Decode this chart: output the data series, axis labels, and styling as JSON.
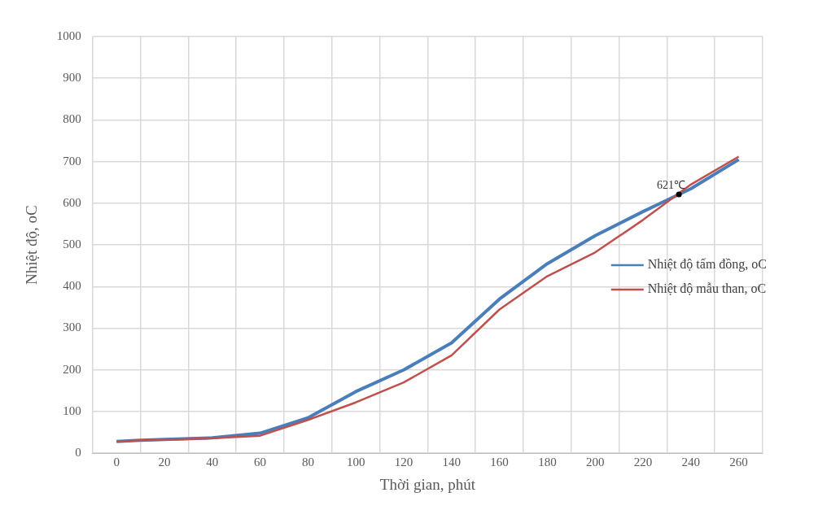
{
  "chart_data": {
    "type": "line",
    "xlabel": "Thời gian, phút",
    "ylabel": "Nhiệt độ, oC",
    "xlim": [
      -10,
      270
    ],
    "xticks": [
      {
        "value": -10,
        "label": null
      },
      0,
      {
        "value": 10,
        "label": null
      },
      20,
      {
        "value": 30,
        "label": null
      },
      40,
      {
        "value": 50,
        "label": null
      },
      60,
      {
        "value": 70,
        "label": null
      },
      80,
      {
        "value": 90,
        "label": null
      },
      100,
      {
        "value": 110,
        "label": null
      },
      120,
      {
        "value": 130,
        "label": null
      },
      140,
      {
        "value": 150,
        "label": null
      },
      160,
      {
        "value": 170,
        "label": null
      },
      180,
      {
        "value": 190,
        "label": null
      },
      200,
      {
        "value": 210,
        "label": null
      },
      220,
      {
        "value": 230,
        "label": null
      },
      240,
      {
        "value": 250,
        "label": null
      },
      260,
      {
        "value": 270,
        "label": null
      }
    ],
    "ylim": [
      0,
      1000
    ],
    "yticks": [
      0,
      100,
      200,
      300,
      400,
      500,
      600,
      700,
      800,
      900,
      1000
    ],
    "x": [
      0,
      10,
      20,
      40,
      60,
      80,
      100,
      120,
      140,
      160,
      180,
      200,
      220,
      240,
      260
    ],
    "series": [
      {
        "name": "Nhiệt độ tấm đồng, oC",
        "color": "#4a7ebb",
        "values": [
          28,
          31,
          33,
          37,
          48,
          85,
          148,
          200,
          265,
          370,
          455,
          522,
          580,
          635,
          705
        ]
      },
      {
        "name": "Nhiệt độ mẫu than, oC",
        "color": "#c0504d",
        "values": [
          28,
          31,
          32,
          36,
          42,
          80,
          122,
          170,
          235,
          345,
          425,
          482,
          560,
          645,
          712
        ]
      }
    ],
    "annotations": [
      {
        "text": "621℃",
        "x": 235,
        "y": 621
      }
    ],
    "grid": true,
    "legend": "right",
    "marker": "none",
    "line_style": "solid"
  }
}
